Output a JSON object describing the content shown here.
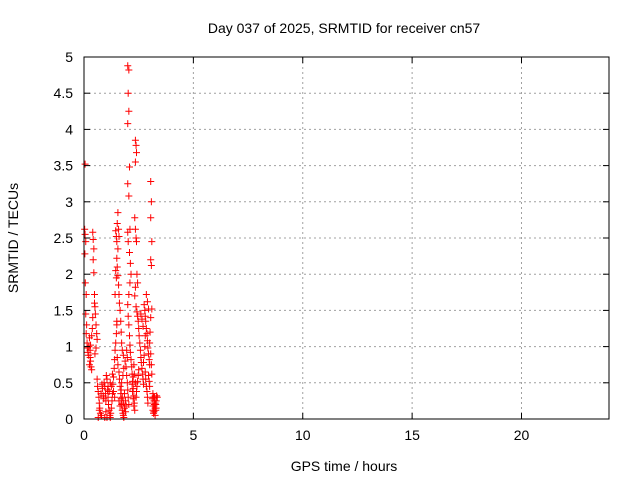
{
  "chart_data": {
    "type": "scatter",
    "title": "Day 037 of 2025, SRMTID for receiver cn57",
    "xlabel": "GPS time / hours",
    "ylabel": "SRMTID / TECUs",
    "xlim": [
      0,
      24
    ],
    "ylim": [
      0,
      5
    ],
    "xticks": [
      0,
      5,
      10,
      15,
      20
    ],
    "xtick_labels": [
      "0",
      "5",
      "10",
      "15",
      "20"
    ],
    "yticks": [
      0,
      0.5,
      1,
      1.5,
      2,
      2.5,
      3,
      3.5,
      4,
      4.5,
      5
    ],
    "ytick_labels": [
      "0",
      "0.5",
      "1",
      "1.5",
      "2",
      "2.5",
      "3",
      "3.5",
      "4",
      "4.5",
      "5"
    ],
    "grid": true,
    "marker": "+",
    "color": "#ff0000",
    "series": [
      {
        "name": "cn57",
        "points": [
          [
            0.05,
            3.52
          ],
          [
            0.03,
            2.62
          ],
          [
            0.05,
            2.55
          ],
          [
            0.08,
            2.45
          ],
          [
            0.04,
            2.28
          ],
          [
            0.06,
            1.88
          ],
          [
            0.1,
            1.72
          ],
          [
            0.08,
            1.45
          ],
          [
            0.12,
            1.3
          ],
          [
            0.1,
            1.18
          ],
          [
            0.14,
            1.05
          ],
          [
            0.15,
            0.98
          ],
          [
            0.18,
            0.92
          ],
          [
            0.2,
            0.88
          ],
          [
            0.22,
            1.0
          ],
          [
            0.25,
            1.12
          ],
          [
            0.28,
            0.95
          ],
          [
            0.3,
            0.8
          ],
          [
            0.32,
            0.72
          ],
          [
            0.35,
            0.68
          ],
          [
            0.4,
            2.58
          ],
          [
            0.42,
            2.48
          ],
          [
            0.45,
            2.35
          ],
          [
            0.42,
            2.2
          ],
          [
            0.45,
            2.02
          ],
          [
            0.48,
            1.72
          ],
          [
            0.5,
            1.55
          ],
          [
            0.52,
            1.45
          ],
          [
            0.55,
            1.3
          ],
          [
            0.58,
            1.18
          ],
          [
            0.6,
            1.1
          ],
          [
            0.55,
            0.98
          ],
          [
            0.5,
            0.9
          ],
          [
            0.48,
            1.6
          ],
          [
            0.4,
            1.4
          ],
          [
            0.38,
            1.25
          ],
          [
            0.35,
            1.15
          ],
          [
            0.3,
            1.02
          ],
          [
            0.28,
            0.85
          ],
          [
            0.25,
            0.75
          ],
          [
            0.6,
            0.55
          ],
          [
            0.62,
            0.45
          ],
          [
            0.65,
            0.38
          ],
          [
            0.68,
            0.3
          ],
          [
            0.7,
            0.22
          ],
          [
            0.72,
            0.15
          ],
          [
            0.75,
            0.08
          ],
          [
            0.8,
            0.05
          ],
          [
            0.65,
            0.02
          ],
          [
            0.7,
            0.12
          ],
          [
            0.78,
            0.35
          ],
          [
            0.82,
            0.48
          ],
          [
            0.85,
            0.42
          ],
          [
            0.88,
            0.32
          ],
          [
            0.9,
            0.28
          ],
          [
            0.92,
            0.5
          ],
          [
            0.95,
            0.45
          ],
          [
            0.98,
            0.35
          ],
          [
            1.0,
            0.25
          ],
          [
            1.02,
            0.6
          ],
          [
            1.05,
            0.55
          ],
          [
            1.08,
            0.4
          ],
          [
            1.1,
            0.3
          ],
          [
            1.12,
            0.2
          ],
          [
            1.15,
            0.12
          ],
          [
            1.18,
            0.05
          ],
          [
            1.2,
            0.02
          ],
          [
            1.05,
            0.02
          ],
          [
            1.22,
            0.08
          ],
          [
            1.25,
            0.15
          ],
          [
            1.28,
            0.25
          ],
          [
            1.3,
            0.35
          ],
          [
            1.32,
            0.48
          ],
          [
            1.35,
            0.58
          ],
          [
            1.38,
            0.7
          ],
          [
            1.4,
            0.82
          ],
          [
            1.42,
            0.95
          ],
          [
            1.45,
            1.05
          ],
          [
            1.48,
            1.18
          ],
          [
            1.5,
            1.3
          ],
          [
            1.45,
            2.6
          ],
          [
            1.48,
            2.52
          ],
          [
            1.5,
            2.45
          ],
          [
            1.52,
            2.7
          ],
          [
            1.55,
            2.85
          ],
          [
            1.58,
            2.62
          ],
          [
            1.6,
            2.52
          ],
          [
            1.55,
            2.35
          ],
          [
            1.5,
            2.22
          ],
          [
            1.52,
            2.1
          ],
          [
            1.55,
            1.98
          ],
          [
            1.58,
            1.85
          ],
          [
            1.6,
            1.72
          ],
          [
            1.62,
            1.6
          ],
          [
            1.48,
            1.95
          ],
          [
            1.45,
            2.05
          ],
          [
            1.42,
            1.72
          ],
          [
            1.5,
            1.35
          ],
          [
            1.52,
            0.85
          ],
          [
            1.55,
            0.75
          ],
          [
            1.6,
            0.65
          ],
          [
            1.62,
            0.55
          ],
          [
            1.65,
            0.45
          ],
          [
            1.68,
            0.35
          ],
          [
            1.7,
            0.28
          ],
          [
            1.72,
            0.2
          ],
          [
            1.75,
            0.12
          ],
          [
            1.78,
            0.08
          ],
          [
            1.8,
            0.05
          ],
          [
            1.82,
            0.02
          ],
          [
            1.7,
            0.4
          ],
          [
            1.75,
            0.3
          ],
          [
            1.8,
            0.22
          ],
          [
            1.85,
            0.15
          ],
          [
            1.65,
            0.18
          ],
          [
            1.6,
            0.25
          ],
          [
            1.72,
            0.5
          ],
          [
            1.78,
            0.6
          ],
          [
            1.82,
            0.7
          ],
          [
            1.88,
            0.8
          ],
          [
            2.0,
            4.88
          ],
          [
            2.05,
            4.82
          ],
          [
            2.02,
            4.5
          ],
          [
            2.05,
            4.25
          ],
          [
            2.0,
            4.08
          ],
          [
            2.08,
            3.48
          ],
          [
            2.0,
            3.25
          ],
          [
            2.05,
            3.08
          ],
          [
            2.1,
            2.62
          ],
          [
            2.0,
            2.58
          ],
          [
            2.02,
            2.45
          ],
          [
            2.08,
            2.3
          ],
          [
            2.12,
            2.15
          ],
          [
            2.15,
            2.0
          ],
          [
            2.1,
            1.88
          ],
          [
            2.05,
            1.72
          ],
          [
            2.0,
            1.58
          ],
          [
            2.02,
            1.42
          ],
          [
            2.05,
            1.3
          ],
          [
            2.08,
            1.15
          ],
          [
            2.1,
            1.02
          ],
          [
            2.12,
            0.92
          ],
          [
            2.15,
            0.82
          ],
          [
            2.18,
            0.72
          ],
          [
            2.2,
            0.62
          ],
          [
            2.22,
            0.52
          ],
          [
            2.25,
            0.42
          ],
          [
            2.28,
            0.32
          ],
          [
            2.3,
            0.22
          ],
          [
            2.32,
            0.12
          ],
          [
            1.95,
            0.95
          ],
          [
            1.98,
            0.85
          ],
          [
            1.92,
            0.72
          ],
          [
            1.95,
            0.6
          ],
          [
            1.98,
            0.5
          ],
          [
            2.0,
            0.4
          ],
          [
            2.02,
            0.3
          ],
          [
            2.05,
            0.2
          ],
          [
            1.9,
            0.1
          ],
          [
            1.92,
            0.18
          ],
          [
            2.35,
            3.85
          ],
          [
            2.38,
            3.78
          ],
          [
            2.4,
            3.68
          ],
          [
            2.35,
            3.55
          ],
          [
            2.32,
            2.78
          ],
          [
            2.35,
            2.62
          ],
          [
            2.38,
            2.5
          ],
          [
            2.4,
            2.45
          ],
          [
            2.42,
            2.0
          ],
          [
            2.45,
            1.88
          ],
          [
            2.35,
            1.82
          ],
          [
            2.32,
            1.7
          ],
          [
            2.38,
            1.55
          ],
          [
            2.42,
            1.48
          ],
          [
            2.45,
            1.42
          ],
          [
            2.48,
            1.35
          ],
          [
            2.5,
            1.25
          ],
          [
            2.52,
            1.15
          ],
          [
            2.55,
            1.05
          ],
          [
            2.58,
            0.95
          ],
          [
            2.6,
            0.85
          ],
          [
            2.62,
            0.78
          ],
          [
            2.65,
            0.7
          ],
          [
            2.68,
            0.62
          ],
          [
            2.7,
            0.55
          ],
          [
            2.72,
            0.48
          ],
          [
            2.5,
            0.68
          ],
          [
            2.48,
            0.6
          ],
          [
            2.45,
            0.52
          ],
          [
            2.42,
            0.45
          ],
          [
            2.4,
            0.38
          ],
          [
            2.38,
            0.3
          ],
          [
            2.35,
            0.5
          ],
          [
            2.3,
            0.62
          ],
          [
            2.28,
            0.75
          ],
          [
            2.25,
            0.58
          ],
          [
            2.2,
            0.48
          ],
          [
            2.22,
            0.38
          ],
          [
            2.25,
            0.28
          ],
          [
            2.28,
            0.18
          ],
          [
            2.75,
            1.58
          ],
          [
            2.78,
            1.5
          ],
          [
            2.8,
            1.42
          ],
          [
            2.82,
            1.35
          ],
          [
            2.85,
            1.25
          ],
          [
            2.88,
            1.18
          ],
          [
            2.9,
            1.08
          ],
          [
            2.92,
            0.98
          ],
          [
            2.95,
            0.9
          ],
          [
            2.98,
            0.82
          ],
          [
            3.0,
            0.75
          ],
          [
            2.8,
            0.65
          ],
          [
            2.82,
            0.55
          ],
          [
            2.85,
            0.45
          ],
          [
            2.88,
            0.38
          ],
          [
            2.9,
            0.3
          ],
          [
            2.92,
            0.22
          ],
          [
            2.95,
            0.6
          ],
          [
            2.98,
            0.52
          ],
          [
            3.0,
            0.45
          ],
          [
            3.05,
            3.28
          ],
          [
            3.08,
            3.0
          ],
          [
            3.05,
            2.78
          ],
          [
            3.1,
            2.45
          ],
          [
            3.05,
            2.2
          ],
          [
            3.08,
            2.12
          ],
          [
            3.1,
            1.52
          ],
          [
            3.05,
            1.4
          ],
          [
            3.02,
            1.2
          ],
          [
            3.0,
            1.05
          ],
          [
            3.05,
            0.9
          ],
          [
            3.08,
            0.75
          ],
          [
            3.1,
            0.62
          ],
          [
            2.95,
            1.52
          ],
          [
            2.9,
            1.62
          ],
          [
            2.85,
            1.72
          ],
          [
            2.8,
            1.15
          ],
          [
            2.78,
            1.0
          ],
          [
            2.75,
            0.88
          ],
          [
            2.72,
            0.78
          ],
          [
            3.15,
            0.35
          ],
          [
            3.18,
            0.3
          ],
          [
            3.2,
            0.25
          ],
          [
            3.22,
            0.2
          ],
          [
            3.25,
            0.15
          ],
          [
            3.28,
            0.12
          ],
          [
            3.3,
            0.25
          ],
          [
            3.32,
            0.32
          ],
          [
            3.2,
            0.1
          ],
          [
            3.15,
            0.18
          ],
          [
            3.12,
            0.28
          ],
          [
            3.25,
            0.05
          ],
          [
            3.18,
            0.08
          ],
          [
            3.28,
            0.2
          ],
          [
            3.22,
            0.3
          ],
          [
            3.35,
            0.3
          ],
          [
            3.3,
            0.15
          ],
          [
            3.15,
            0.12
          ],
          [
            3.2,
            0.18
          ],
          [
            3.25,
            0.22
          ],
          [
            0.95,
            0.02
          ],
          [
            1.0,
            0.1
          ],
          [
            1.1,
            0.45
          ],
          [
            1.15,
            0.38
          ],
          [
            1.2,
            0.5
          ],
          [
            1.25,
            0.45
          ],
          [
            1.3,
            0.62
          ],
          [
            1.35,
            0.38
          ],
          [
            1.4,
            0.3
          ],
          [
            1.65,
            1.5
          ],
          [
            1.68,
            1.35
          ],
          [
            1.7,
            1.2
          ],
          [
            1.72,
            1.05
          ],
          [
            1.75,
            0.95
          ],
          [
            1.8,
            0.88
          ],
          [
            1.85,
            0.35
          ],
          [
            1.9,
            0.25
          ],
          [
            2.6,
            1.45
          ],
          [
            2.65,
            1.38
          ],
          [
            2.7,
            1.28
          ]
        ]
      }
    ]
  }
}
